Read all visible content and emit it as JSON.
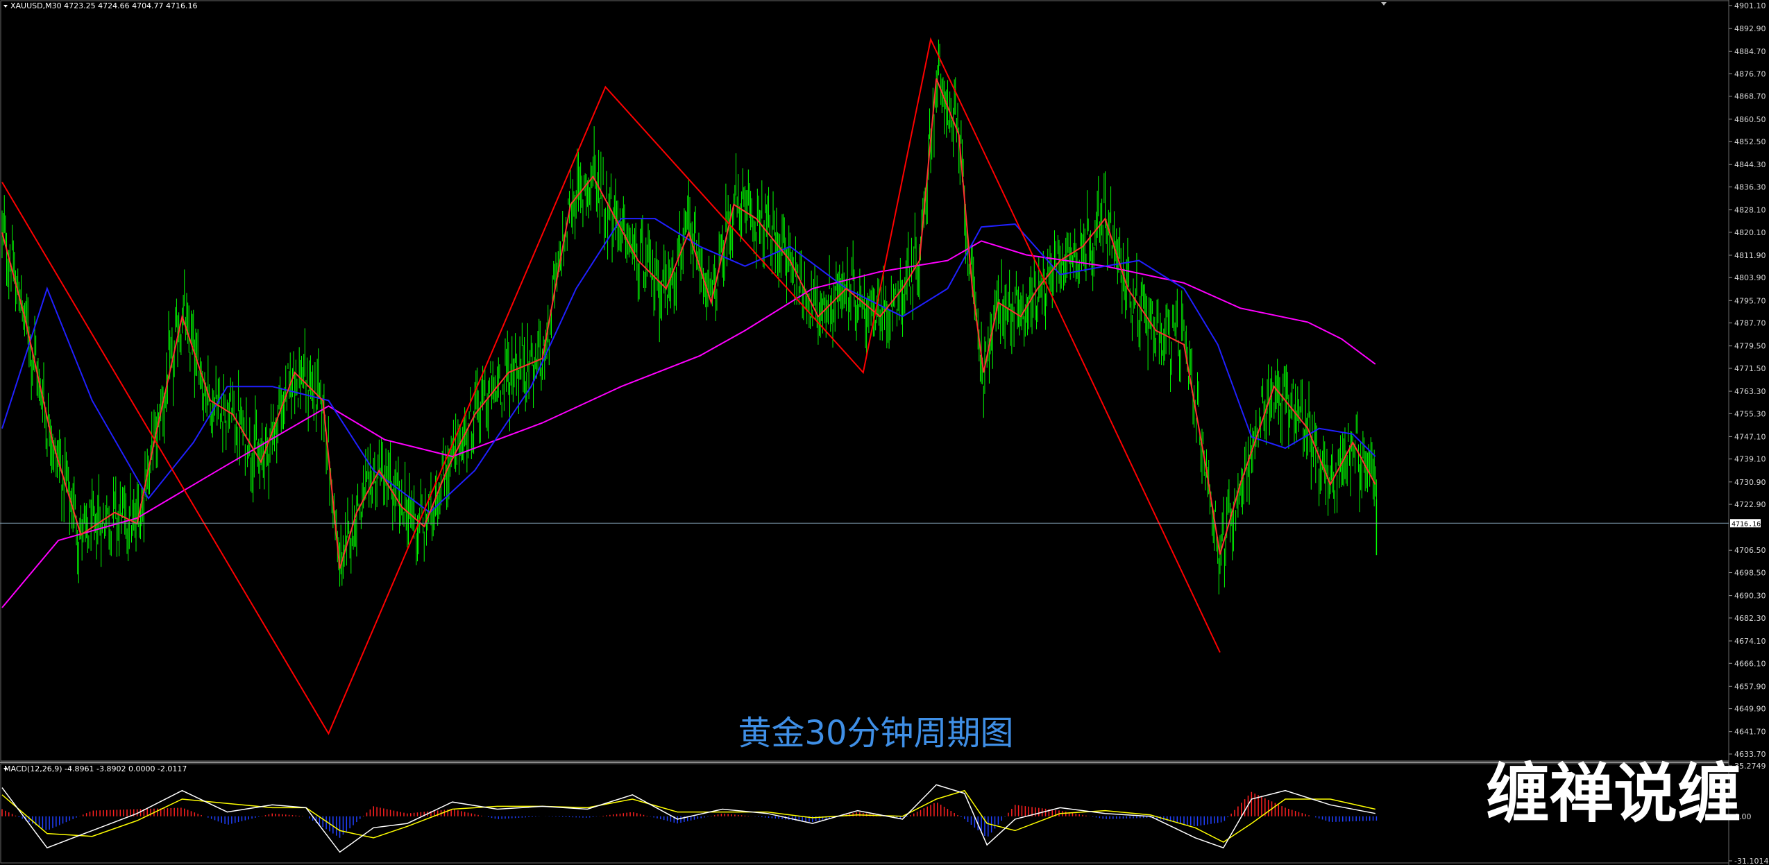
{
  "chart_data": [
    {
      "type": "candlestick",
      "header": "XAUUSD,M30  4723.25 4724.66 4704.77 4716.16",
      "symbol": "XAUUSD",
      "timeframe": "M30",
      "ohlc": {
        "open": 4723.25,
        "high": 4724.66,
        "low": 4704.77,
        "close": 4716.16
      },
      "current_price": 4716.16,
      "current_price_label": "4716.16",
      "ylim": [
        4633.7,
        4901.1
      ],
      "y_ticks": [
        "4901.10",
        "4892.90",
        "4884.70",
        "4876.70",
        "4868.70",
        "4860.50",
        "4852.50",
        "4844.30",
        "4836.30",
        "4828.10",
        "4820.10",
        "4811.90",
        "4803.90",
        "4795.70",
        "4787.70",
        "4779.50",
        "4771.50",
        "4763.30",
        "4755.30",
        "4747.10",
        "4739.10",
        "4730.90",
        "4722.90",
        "4706.50",
        "4698.50",
        "4690.30",
        "4682.30",
        "4674.10",
        "4666.10",
        "4657.90",
        "4649.90",
        "4641.70",
        "4633.70"
      ],
      "caption": "黄金30分钟周期图",
      "colors": {
        "candles": "#00ff00",
        "zigzag": "#ff0000",
        "ma_fast": "#ff3030",
        "ma_mid": "#2020ff",
        "ma_slow": "#ff00ff",
        "price_line": "#7f9cb0"
      },
      "zigzag": [
        {
          "bar": 0,
          "price": 4838
        },
        {
          "bar": 290,
          "price": 4641
        },
        {
          "bar": 536,
          "price": 4872
        },
        {
          "bar": 765,
          "price": 4770
        },
        {
          "bar": 825,
          "price": 4889
        },
        {
          "bar": 1082,
          "price": 4670
        }
      ],
      "ma_fast": [
        [
          0,
          4820
        ],
        [
          20,
          4790
        ],
        [
          45,
          4745
        ],
        [
          70,
          4712
        ],
        [
          100,
          4720
        ],
        [
          120,
          4716
        ],
        [
          135,
          4745
        ],
        [
          160,
          4790
        ],
        [
          185,
          4760
        ],
        [
          205,
          4755
        ],
        [
          230,
          4738
        ],
        [
          260,
          4770
        ],
        [
          285,
          4760
        ],
        [
          300,
          4700
        ],
        [
          315,
          4720
        ],
        [
          335,
          4735
        ],
        [
          355,
          4722
        ],
        [
          375,
          4715
        ],
        [
          395,
          4735
        ],
        [
          420,
          4755
        ],
        [
          450,
          4770
        ],
        [
          480,
          4775
        ],
        [
          505,
          4830
        ],
        [
          525,
          4840
        ],
        [
          545,
          4825
        ],
        [
          565,
          4810
        ],
        [
          590,
          4800
        ],
        [
          610,
          4820
        ],
        [
          630,
          4795
        ],
        [
          650,
          4830
        ],
        [
          670,
          4825
        ],
        [
          700,
          4810
        ],
        [
          725,
          4790
        ],
        [
          750,
          4800
        ],
        [
          780,
          4790
        ],
        [
          800,
          4800
        ],
        [
          815,
          4810
        ],
        [
          830,
          4875
        ],
        [
          850,
          4855
        ],
        [
          862,
          4800
        ],
        [
          872,
          4770
        ],
        [
          885,
          4795
        ],
        [
          905,
          4790
        ],
        [
          920,
          4800
        ],
        [
          940,
          4810
        ],
        [
          960,
          4815
        ],
        [
          980,
          4825
        ],
        [
          1000,
          4800
        ],
        [
          1025,
          4785
        ],
        [
          1050,
          4780
        ],
        [
          1070,
          4735
        ],
        [
          1082,
          4705
        ],
        [
          1100,
          4730
        ],
        [
          1130,
          4765
        ],
        [
          1160,
          4750
        ],
        [
          1180,
          4730
        ],
        [
          1200,
          4745
        ],
        [
          1220,
          4730
        ]
      ],
      "ma_mid": [
        [
          0,
          4750
        ],
        [
          40,
          4800
        ],
        [
          80,
          4760
        ],
        [
          130,
          4725
        ],
        [
          170,
          4745
        ],
        [
          200,
          4765
        ],
        [
          240,
          4765
        ],
        [
          290,
          4760
        ],
        [
          330,
          4735
        ],
        [
          380,
          4720
        ],
        [
          420,
          4735
        ],
        [
          470,
          4765
        ],
        [
          510,
          4800
        ],
        [
          550,
          4825
        ],
        [
          580,
          4825
        ],
        [
          620,
          4815
        ],
        [
          660,
          4808
        ],
        [
          700,
          4815
        ],
        [
          750,
          4800
        ],
        [
          800,
          4790
        ],
        [
          840,
          4800
        ],
        [
          870,
          4822
        ],
        [
          900,
          4823
        ],
        [
          940,
          4805
        ],
        [
          980,
          4808
        ],
        [
          1010,
          4810
        ],
        [
          1050,
          4800
        ],
        [
          1080,
          4780
        ],
        [
          1110,
          4747
        ],
        [
          1140,
          4743
        ],
        [
          1170,
          4750
        ],
        [
          1200,
          4748
        ],
        [
          1220,
          4740
        ]
      ],
      "ma_slow": [
        [
          0,
          4686
        ],
        [
          50,
          4710
        ],
        [
          120,
          4718
        ],
        [
          200,
          4737
        ],
        [
          290,
          4758
        ],
        [
          340,
          4746
        ],
        [
          400,
          4740
        ],
        [
          480,
          4752
        ],
        [
          550,
          4765
        ],
        [
          620,
          4776
        ],
        [
          660,
          4785
        ],
        [
          720,
          4800
        ],
        [
          780,
          4806
        ],
        [
          840,
          4810
        ],
        [
          870,
          4817
        ],
        [
          910,
          4812
        ],
        [
          980,
          4808
        ],
        [
          1050,
          4802
        ],
        [
          1100,
          4793
        ],
        [
          1160,
          4788
        ],
        [
          1190,
          4782
        ],
        [
          1220,
          4773
        ]
      ]
    },
    {
      "type": "macd",
      "header": "MACD(12,26,9) -4.8961 -3.8902 0.0000 -2.0117",
      "params": "12,26,9",
      "values": [
        -4.8961,
        -3.8902,
        0.0,
        -2.0117
      ],
      "ylim": [
        -31.1014,
        35.2749
      ],
      "y_ticks": [
        "35.2749",
        "0.00",
        "-31.1014"
      ],
      "colors": {
        "hist_pos": "#ff2020",
        "hist_neg": "#2040ff",
        "line_signal": "#ffff00",
        "line_macd": "#ffffff"
      },
      "macd_line": [
        [
          0,
          20
        ],
        [
          40,
          -22
        ],
        [
          80,
          -10
        ],
        [
          120,
          2
        ],
        [
          160,
          18
        ],
        [
          200,
          3
        ],
        [
          240,
          8
        ],
        [
          270,
          6
        ],
        [
          300,
          -25
        ],
        [
          330,
          -8
        ],
        [
          360,
          -5
        ],
        [
          400,
          10
        ],
        [
          440,
          5
        ],
        [
          480,
          7
        ],
        [
          520,
          5
        ],
        [
          560,
          15
        ],
        [
          600,
          -2
        ],
        [
          640,
          5
        ],
        [
          680,
          2
        ],
        [
          720,
          -5
        ],
        [
          760,
          4
        ],
        [
          800,
          -2
        ],
        [
          830,
          22
        ],
        [
          855,
          16
        ],
        [
          875,
          -20
        ],
        [
          900,
          -2
        ],
        [
          940,
          6
        ],
        [
          980,
          2
        ],
        [
          1020,
          0
        ],
        [
          1060,
          -15
        ],
        [
          1085,
          -22
        ],
        [
          1110,
          12
        ],
        [
          1140,
          18
        ],
        [
          1180,
          8
        ],
        [
          1220,
          2
        ]
      ],
      "signal_line": [
        [
          0,
          15
        ],
        [
          40,
          -12
        ],
        [
          80,
          -14
        ],
        [
          120,
          -3
        ],
        [
          160,
          12
        ],
        [
          200,
          9
        ],
        [
          240,
          6
        ],
        [
          270,
          6
        ],
        [
          300,
          -10
        ],
        [
          330,
          -15
        ],
        [
          360,
          -7
        ],
        [
          400,
          5
        ],
        [
          440,
          7
        ],
        [
          480,
          7
        ],
        [
          520,
          6
        ],
        [
          560,
          12
        ],
        [
          600,
          3
        ],
        [
          640,
          3
        ],
        [
          680,
          3
        ],
        [
          720,
          -1
        ],
        [
          760,
          1
        ],
        [
          800,
          0
        ],
        [
          830,
          12
        ],
        [
          855,
          18
        ],
        [
          875,
          -5
        ],
        [
          900,
          -10
        ],
        [
          940,
          2
        ],
        [
          980,
          4
        ],
        [
          1020,
          1
        ],
        [
          1060,
          -8
        ],
        [
          1085,
          -18
        ],
        [
          1110,
          -5
        ],
        [
          1140,
          12
        ],
        [
          1180,
          12
        ],
        [
          1220,
          5
        ]
      ]
    }
  ],
  "watermark": "缠禅说缠"
}
